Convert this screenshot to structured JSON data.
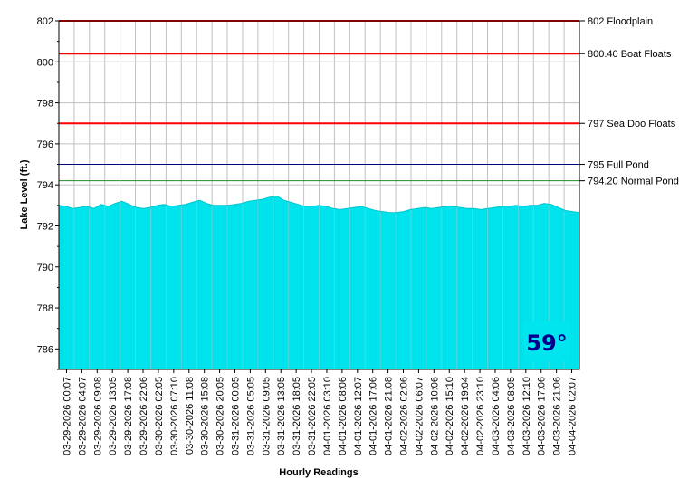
{
  "chart_data": {
    "type": "area",
    "xlabel": "Hourly Readings",
    "ylabel": "Lake Level (ft.)",
    "ylim": [
      785,
      802
    ],
    "yticks": [
      786,
      788,
      790,
      792,
      794,
      796,
      798,
      800,
      802
    ],
    "grid": true,
    "x_tick_labels": [
      "03-29-2026 00:07",
      "03-29-2026 04:07",
      "03-29-2026 09:08",
      "03-29-2026 13:05",
      "03-29-2026 17:08",
      "03-29-2026 22:06",
      "03-30-2026 02:05",
      "03-30-2026 07:10",
      "03-30-2026 11:08",
      "03-30-2026 15:08",
      "03-30-2026 20:05",
      "03-31-2026 00:05",
      "03-31-2026 05:05",
      "03-31-2026 09:05",
      "03-31-2026 13:05",
      "03-31-2026 18:05",
      "03-31-2026 22:05",
      "04-01-2026 03:10",
      "04-01-2026 08:06",
      "04-01-2026 12:07",
      "04-01-2026 17:06",
      "04-01-2026 21:08",
      "04-02-2026 02:06",
      "04-02-2026 06:07",
      "04-02-2026 10:06",
      "04-02-2026 15:10",
      "04-02-2026 19:04",
      "04-02-2026 23:10",
      "04-03-2026 04:06",
      "04-03-2026 08:05",
      "04-03-2026 12:10",
      "04-03-2026 17:06",
      "04-03-2026 21:06",
      "04-04-2026 02:07"
    ],
    "series": [
      {
        "values": [
          793.0,
          792.95,
          792.85,
          792.9,
          792.95,
          792.85,
          793.05,
          792.95,
          793.1,
          793.2,
          793.05,
          792.9,
          792.85,
          792.9,
          793.0,
          793.05,
          792.95,
          793.0,
          793.05,
          793.15,
          793.25,
          793.1,
          793.0,
          793.0,
          793.0,
          793.05,
          793.1,
          793.2,
          793.25,
          793.3,
          793.4,
          793.45,
          793.25,
          793.15,
          793.05,
          792.95,
          792.95,
          793.0,
          792.95,
          792.85,
          792.8,
          792.85,
          792.9,
          792.95,
          792.85,
          792.75,
          792.7,
          792.65,
          792.65,
          792.7,
          792.8,
          792.85,
          792.9,
          792.85,
          792.9,
          792.95,
          792.95,
          792.9,
          792.85,
          792.85,
          792.8,
          792.85,
          792.9,
          792.95,
          792.95,
          793.0,
          792.95,
          793.0,
          793.0,
          793.1,
          793.05,
          792.9,
          792.75,
          792.7,
          792.65
        ]
      }
    ],
    "reference_lines": [
      {
        "value": 802,
        "label": "802 Floodplain",
        "color": "#ff0000"
      },
      {
        "value": 800.4,
        "label": "800.40 Boat Floats",
        "color": "#ff0000"
      },
      {
        "value": 797,
        "label": "797 Sea Doo Floats",
        "color": "#ff0000"
      },
      {
        "value": 795,
        "label": "795 Full Pond",
        "color": "#000080"
      },
      {
        "value": 794.2,
        "label": "794.20 Normal Pond",
        "color": "#228b22"
      }
    ],
    "fill_color": "#00e5ee",
    "temperature": "59°"
  }
}
